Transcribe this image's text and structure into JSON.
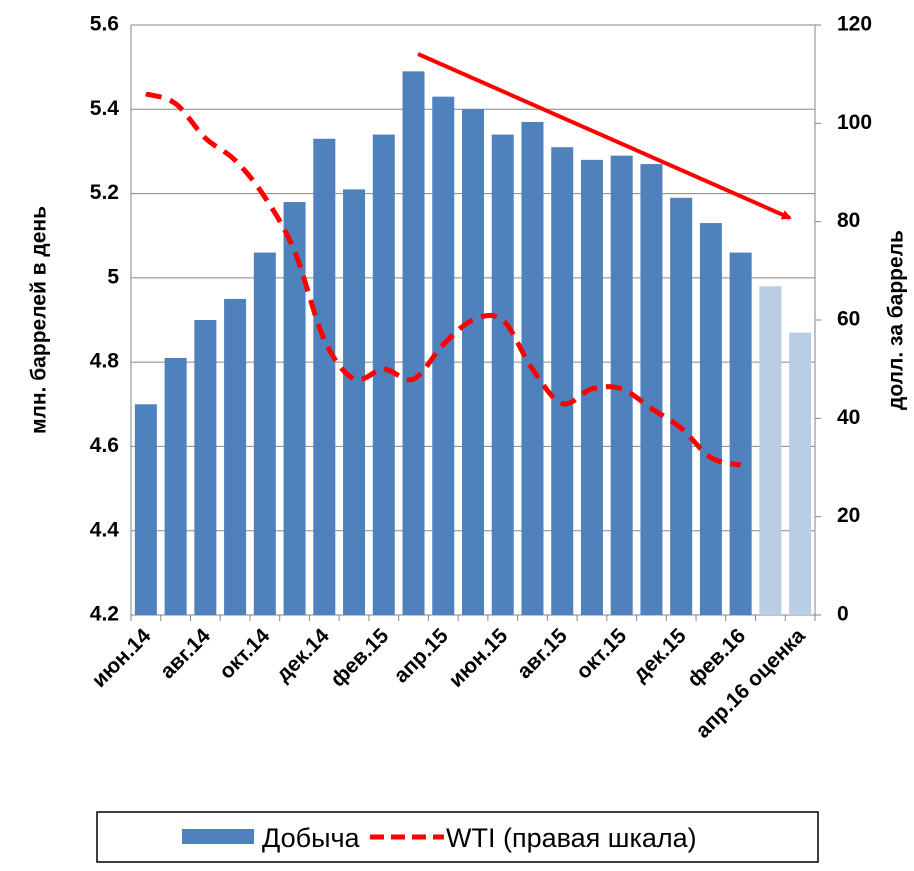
{
  "chart_data": {
    "type": "bar_line",
    "categories": [
      "июн.14",
      null,
      "авг.14",
      null,
      "окт.14",
      null,
      "дек.14",
      null,
      "фев.15",
      null,
      "апр.15",
      null,
      "июн.15",
      null,
      "авг.15",
      null,
      "окт.15",
      null,
      "дек.15",
      null,
      "фев.16",
      null,
      "апр.16 оценка"
    ],
    "series": [
      {
        "name": "Добыча",
        "type": "bar",
        "color": "#4f81bd",
        "colors": [
          "#4f81bd",
          "#4f81bd",
          "#4f81bd",
          "#4f81bd",
          "#4f81bd",
          "#4f81bd",
          "#4f81bd",
          "#4f81bd",
          "#4f81bd",
          "#4f81bd",
          "#4f81bd",
          "#4f81bd",
          "#4f81bd",
          "#4f81bd",
          "#4f81bd",
          "#4f81bd",
          "#4f81bd",
          "#4f81bd",
          "#4f81bd",
          "#4f81bd",
          "#4f81bd",
          "#b9cde5",
          "#b9cde5"
        ],
        "values": [
          4.7,
          4.81,
          4.9,
          4.95,
          5.06,
          5.18,
          5.33,
          5.21,
          5.34,
          5.49,
          5.43,
          5.4,
          5.34,
          5.37,
          5.31,
          5.28,
          5.29,
          5.27,
          5.19,
          5.13,
          5.06,
          4.98,
          4.87
        ]
      },
      {
        "name": "WTI (правая шкала)",
        "type": "line",
        "axis": "y2",
        "color": "#ff0000",
        "dashed": true,
        "values": [
          106,
          104,
          97,
          92.5,
          85,
          74,
          56,
          48,
          50,
          48,
          55,
          60,
          60,
          50,
          43,
          46,
          46,
          42,
          38,
          32,
          30.5,
          null,
          null
        ]
      }
    ],
    "ylabel": "млн. баррелей в день",
    "y2label": "долл. за баррель",
    "ylim": [
      4.2,
      5.6
    ],
    "yticks": [
      4.2,
      4.4,
      4.6,
      4.8,
      5,
      5.2,
      5.4,
      5.6
    ],
    "y2lim": [
      0,
      120
    ],
    "y2ticks": [
      0,
      20,
      40,
      60,
      80,
      100,
      120
    ],
    "grid": true,
    "legend": "bottom"
  }
}
